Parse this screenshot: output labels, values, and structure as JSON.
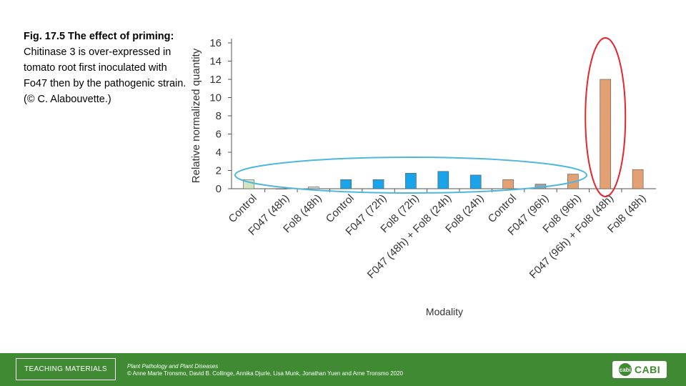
{
  "caption": {
    "bold": "Fig. 17.5 The effect of priming:",
    "text": " Chitinase 3 is over-expressed in tomato root first inoculated with Fo47 then by the pathogenic strain. (© C. Alabouvette.)"
  },
  "chart_data": {
    "type": "bar",
    "title": "",
    "xlabel": "Modality",
    "ylabel": "Relative normalized quantity",
    "ylim": [
      0,
      16
    ],
    "yticks": [
      0,
      2,
      4,
      6,
      8,
      10,
      12,
      14,
      16
    ],
    "grid": false,
    "categories": [
      "Control",
      "F047 (48h)",
      "Fol8 (48h)",
      "Control",
      "F047 (72h)",
      "Fol8 (72h)",
      "F047 (48h) + Fol8 (24h)",
      "Fol8 (24h)",
      "Control",
      "F047 (96h)",
      "Fol8 (96h)",
      "F047 (96h) + Fol8 (48h)",
      "Fol8 (48h)"
    ],
    "values": [
      1.0,
      0.0,
      0.2,
      1.0,
      1.0,
      1.7,
      1.9,
      1.5,
      1.0,
      0.5,
      1.6,
      12.0,
      2.1
    ],
    "colors": [
      "#cfe6c0",
      "#cfe6c0",
      "#d9d9d9",
      "#1aa3e8",
      "#1aa3e8",
      "#1aa3e8",
      "#1aa3e8",
      "#1aa3e8",
      "#e3a073",
      "#9aa0a6",
      "#e3a073",
      "#e3a073",
      "#e3a073"
    ],
    "annotations": [
      {
        "shape": "ellipse",
        "color": "#4fb7df",
        "around": "low-expression bars"
      },
      {
        "shape": "ellipse",
        "color": "#e5262c",
        "around": "F047 (96h) + Fol8 (48h)"
      }
    ]
  },
  "footer": {
    "teaching_label": "TEACHING MATERIALS",
    "book_title": "Plant Pathology and Plant Diseases",
    "book_authors": "© Anne Marte Tronsmo, David B. Collinge, Annika Djurle, Lisa Munk, Jonathan Yuen and Arne Tronsmo 2020",
    "logo_mark": "cabi",
    "logo_text": "CABI"
  }
}
